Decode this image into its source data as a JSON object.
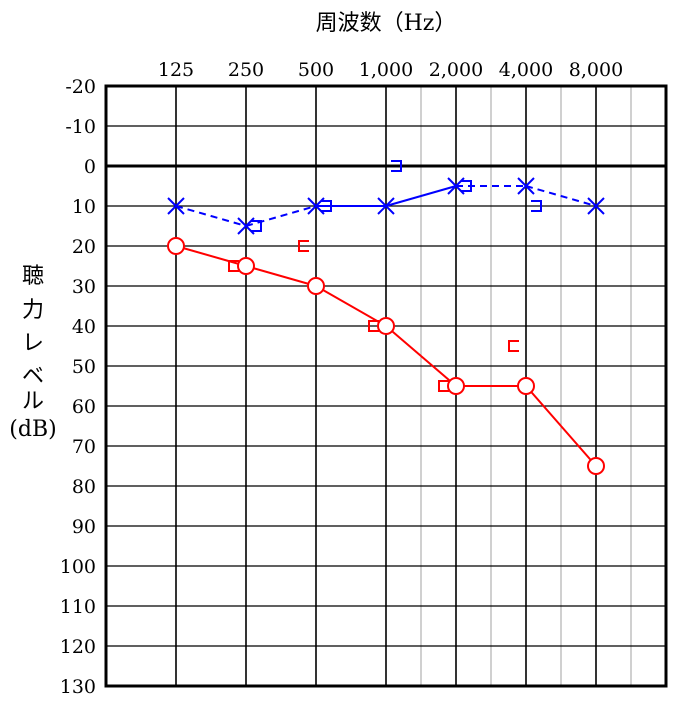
{
  "chart_data": {
    "type": "line",
    "title": "周波数（Hz）",
    "ylabel_chars": [
      "聴",
      "力",
      "レ",
      "ベ",
      "ル",
      "(dB)"
    ],
    "x_categories": [
      "125",
      "250",
      "500",
      "1,000",
      "2,000",
      "4,000",
      "8,000"
    ],
    "y_ticks": [
      "-20",
      "-10",
      "0",
      "10",
      "20",
      "30",
      "40",
      "50",
      "60",
      "70",
      "80",
      "90",
      "100",
      "110",
      "120",
      "130"
    ],
    "ylim": [
      -20,
      130
    ],
    "y_inverted": true,
    "grid": true,
    "series": [
      {
        "color": "#ff0000",
        "line_style": "solid",
        "marker": "circle",
        "points": [
          [
            125,
            20
          ],
          [
            250,
            25
          ],
          [
            500,
            30
          ],
          [
            1000,
            40
          ],
          [
            2000,
            55
          ],
          [
            4000,
            55
          ],
          [
            8000,
            75
          ]
        ]
      },
      {
        "color": "#ff0000",
        "line_style": "none",
        "marker": "bracket-left",
        "points": [
          [
            250,
            25
          ],
          [
            500,
            25
          ],
          [
            1000,
            40
          ],
          [
            2000,
            55
          ],
          [
            4000,
            50
          ]
        ]
      },
      {
        "color": "#0000ff",
        "line_style": "dashed-solid",
        "marker": "x",
        "points": [
          [
            125,
            10
          ],
          [
            250,
            15
          ],
          [
            500,
            10
          ],
          [
            1000,
            10
          ],
          [
            2000,
            5
          ],
          [
            4000,
            5
          ],
          [
            8000,
            10
          ]
        ]
      },
      {
        "color": "#0000ff",
        "line_style": "none",
        "marker": "bracket-right",
        "points": [
          [
            250,
            15
          ],
          [
            500,
            10
          ],
          [
            1000,
            5
          ],
          [
            2000,
            5
          ],
          [
            4000,
            10
          ]
        ]
      }
    ]
  }
}
